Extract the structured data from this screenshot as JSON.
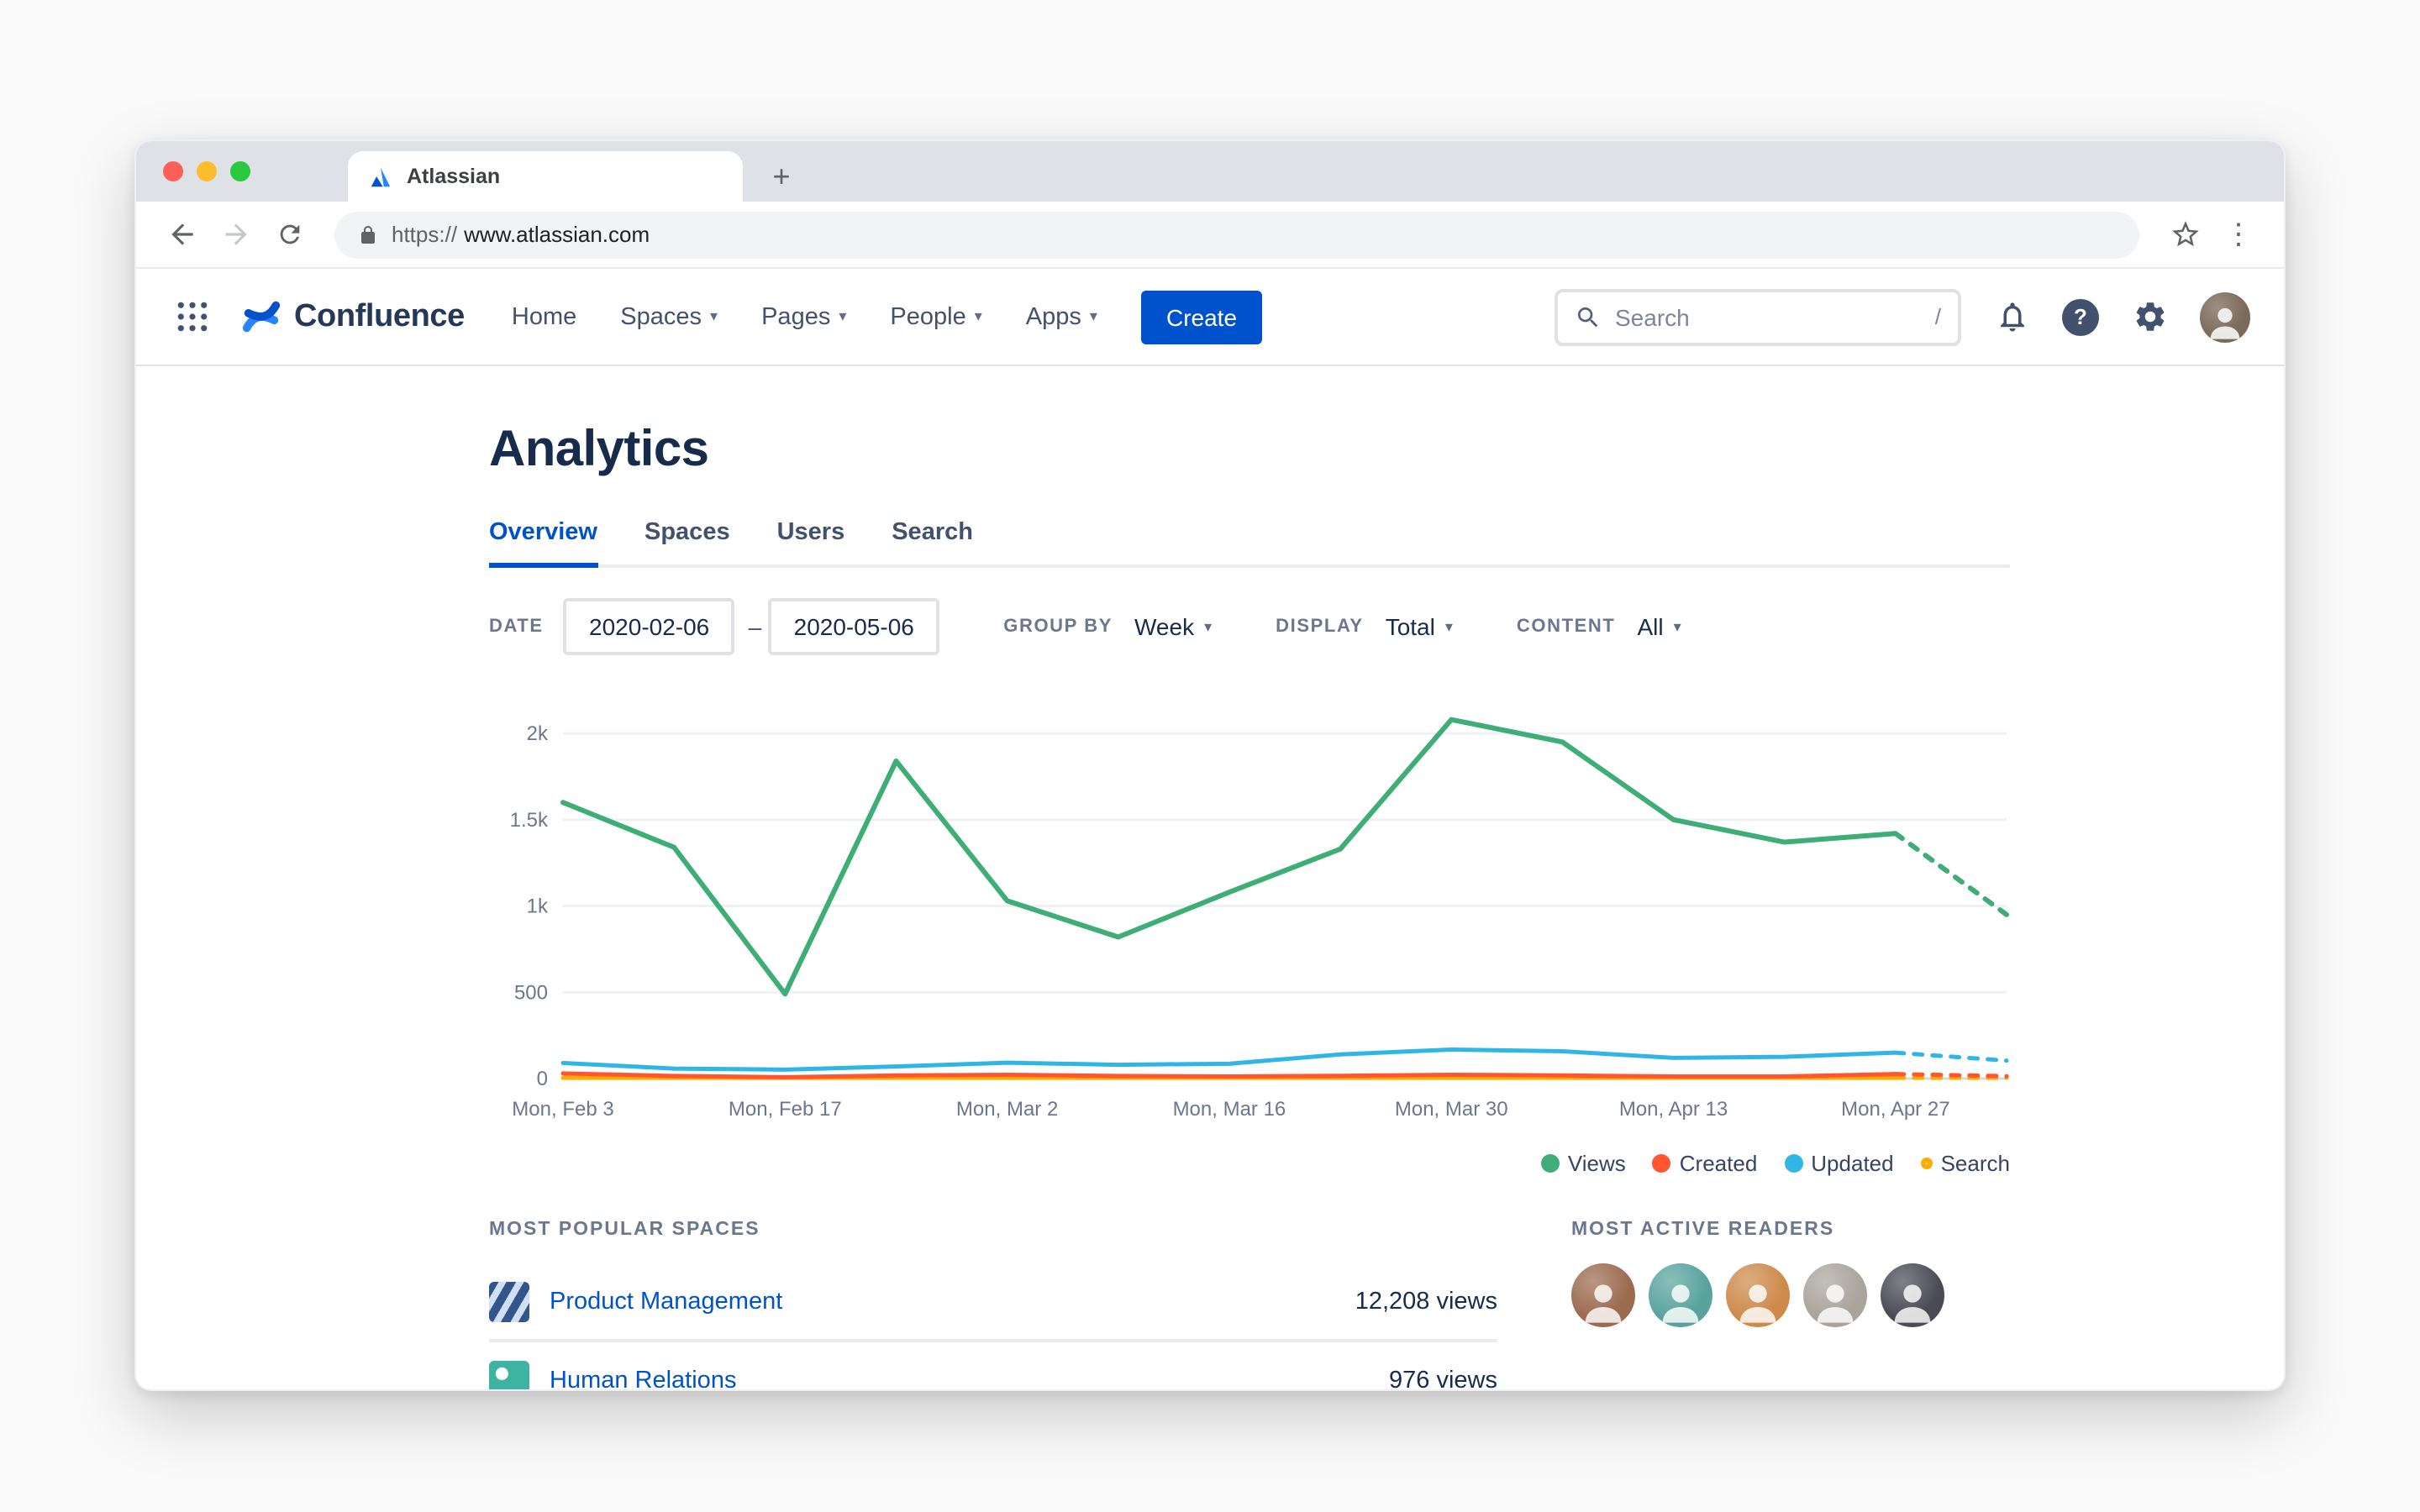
{
  "colors": {
    "brand_blue": "#0052cc",
    "views_green": "#3fae76",
    "created_red": "#ff5630",
    "updated_blue": "#30b6e6",
    "search_yellow": "#ffab00"
  },
  "browser": {
    "tab_title": "Atlassian",
    "new_tab": "+",
    "url_prefix": "https://",
    "url_host": "www.atlassian.com"
  },
  "app_header": {
    "brand": "Confluence",
    "nav": {
      "home": "Home",
      "spaces": "Spaces",
      "pages": "Pages",
      "people": "People",
      "apps": "Apps"
    },
    "create": "Create",
    "search_placeholder": "Search",
    "search_shortcut": "/"
  },
  "page": {
    "title": "Analytics",
    "tabs": {
      "overview": "Overview",
      "spaces": "Spaces",
      "users": "Users",
      "search": "Search"
    },
    "filters": {
      "date_label": "DATE",
      "date_from": "2020-02-06",
      "date_separator": "–",
      "date_to": "2020-05-06",
      "group_by_label": "GROUP BY",
      "group_by": "Week",
      "display_label": "DISPLAY",
      "display": "Total",
      "content_label": "CONTENT",
      "content": "All"
    }
  },
  "chart_data": {
    "type": "line",
    "title": "",
    "x_labels": [
      "Mon, Feb 3",
      "Mon, Feb 17",
      "Mon, Mar 2",
      "Mon, Mar 16",
      "Mon, Mar 30",
      "Mon, Apr 13",
      "Mon, Apr 27"
    ],
    "x_tick_indices": [
      0,
      2,
      4,
      6,
      8,
      10,
      12
    ],
    "x_count": 14,
    "x_interval": "weekly",
    "ylim": [
      0,
      2200
    ],
    "yticks": [
      {
        "value": 0,
        "label": "0"
      },
      {
        "value": 500,
        "label": "500"
      },
      {
        "value": 1000,
        "label": "1k"
      },
      {
        "value": 1500,
        "label": "1.5k"
      },
      {
        "value": 2000,
        "label": "2k"
      }
    ],
    "grid": "horizontal",
    "legend_position": "bottom-right",
    "solid_until_index": 12,
    "projection_note": "final segment dashed (projected)",
    "series": [
      {
        "name": "Views",
        "color": "#3fae76",
        "marker": "dot",
        "values": [
          1600,
          1340,
          490,
          1840,
          1030,
          820,
          1080,
          1330,
          2080,
          1950,
          1500,
          1370,
          1420,
          950
        ]
      },
      {
        "name": "Created",
        "color": "#ff5630",
        "marker": "dot",
        "values": [
          30,
          15,
          8,
          18,
          22,
          15,
          12,
          16,
          22,
          18,
          12,
          12,
          26,
          14
        ]
      },
      {
        "name": "Updated",
        "color": "#30b6e6",
        "marker": "dot",
        "values": [
          90,
          58,
          52,
          70,
          92,
          80,
          86,
          140,
          168,
          158,
          120,
          126,
          150,
          104
        ]
      },
      {
        "name": "Search",
        "color": "#ffab00",
        "marker": "ring",
        "values": [
          4,
          4,
          4,
          4,
          4,
          4,
          4,
          4,
          4,
          4,
          4,
          4,
          4,
          4
        ]
      }
    ]
  },
  "popular_spaces": {
    "heading": "MOST POPULAR SPACES",
    "rows": [
      {
        "name": "Product Management",
        "views": "12,208 views"
      },
      {
        "name": "Human Relations",
        "views": "976 views"
      }
    ]
  },
  "active_readers": {
    "heading": "MOST ACTIVE READERS",
    "count": 5
  }
}
